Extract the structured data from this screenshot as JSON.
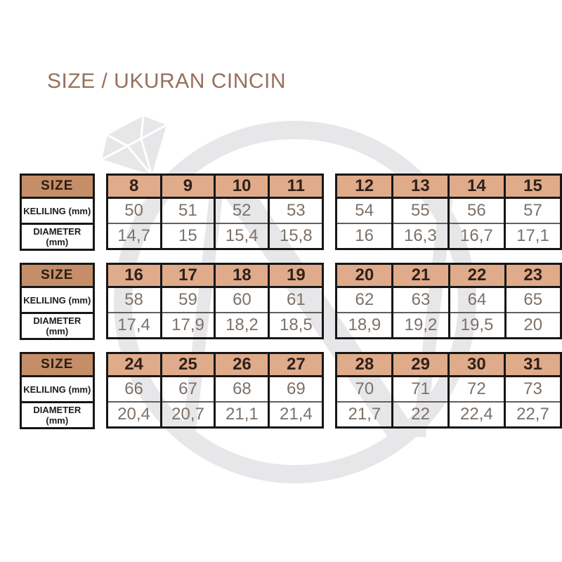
{
  "title": "SIZE / UKURAN CINCIN",
  "row_labels": {
    "size": "SIZE",
    "keliling": "KELILING (mm)",
    "diameter": "DIAMETER (mm)"
  },
  "groups": [
    {
      "tables": [
        {
          "sizes": [
            "8",
            "9",
            "10",
            "11"
          ],
          "keliling": [
            "50",
            "51",
            "52",
            "53"
          ],
          "diameter": [
            "14,7",
            "15",
            "15,4",
            "15,8"
          ]
        },
        {
          "sizes": [
            "12",
            "13",
            "14",
            "15"
          ],
          "keliling": [
            "54",
            "55",
            "56",
            "57"
          ],
          "diameter": [
            "16",
            "16,3",
            "16,7",
            "17,1"
          ]
        }
      ]
    },
    {
      "tables": [
        {
          "sizes": [
            "16",
            "17",
            "18",
            "19"
          ],
          "keliling": [
            "58",
            "59",
            "60",
            "61"
          ],
          "diameter": [
            "17,4",
            "17,9",
            "18,2",
            "18,5"
          ]
        },
        {
          "sizes": [
            "20",
            "21",
            "22",
            "23"
          ],
          "keliling": [
            "62",
            "63",
            "64",
            "65"
          ],
          "diameter": [
            "18,9",
            "19,2",
            "19,5",
            "20"
          ]
        }
      ]
    },
    {
      "tables": [
        {
          "sizes": [
            "24",
            "25",
            "26",
            "27"
          ],
          "keliling": [
            "66",
            "67",
            "68",
            "69"
          ],
          "diameter": [
            "20,4",
            "20,7",
            "21,1",
            "21,4"
          ]
        },
        {
          "sizes": [
            "28",
            "29",
            "30",
            "31"
          ],
          "keliling": [
            "70",
            "71",
            "72",
            "73"
          ],
          "diameter": [
            "21,7",
            "22",
            "22,4",
            "22,7"
          ]
        }
      ]
    }
  ],
  "colors": {
    "title_text": "#97705c",
    "size_label_bg": "#c58e68",
    "size_header_bg": "#dfab8a",
    "header_text": "#30211a",
    "data_text": "#7d7168",
    "border": "#161616",
    "watermark": "#e7e7e9"
  },
  "watermark": {
    "description": "light gray diamond-ring brand logo with monogram letter",
    "letter": "N"
  }
}
